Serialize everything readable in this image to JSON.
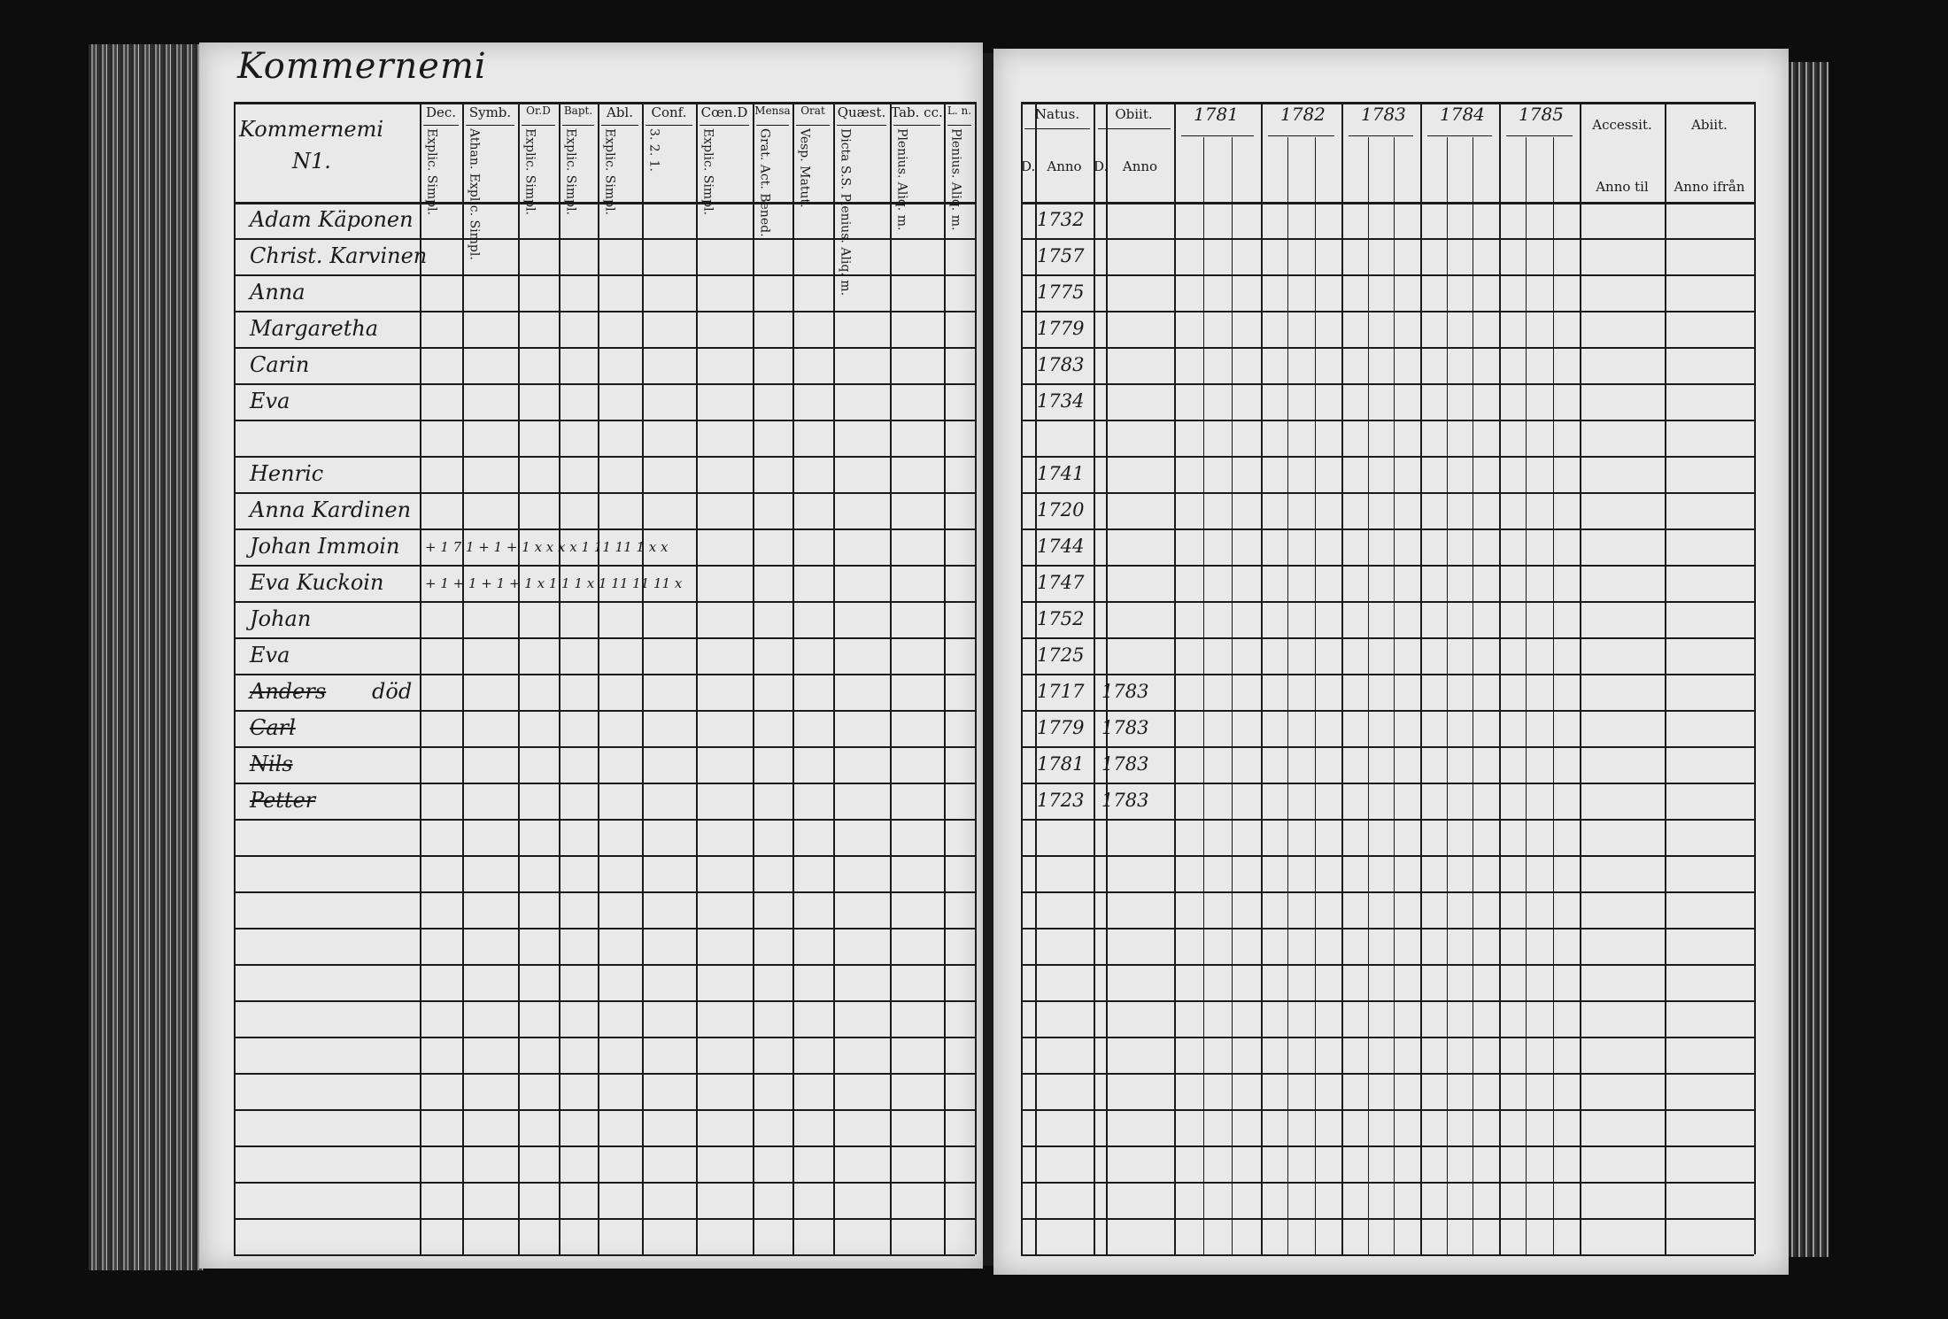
{
  "left_page": {
    "title": "Kommernemi",
    "first_header": {
      "line1": "Kommernemi",
      "line2": "N1."
    },
    "columns": [
      {
        "label": "Dec.",
        "sub": "Explic. Simpl."
      },
      {
        "label": "Symb.",
        "sub": "Athan. Explic. Simpl."
      },
      {
        "label": "Or.D",
        "sub": "Explic. Simpl."
      },
      {
        "label": "Bapt.",
        "sub": "Explic. Simpl."
      },
      {
        "label": "Abl.",
        "sub": "Explic. Simpl."
      },
      {
        "label": "Conf.",
        "sub": "3. 2. 1."
      },
      {
        "label": "Cœn.D",
        "sub": "Explic. Simpl."
      },
      {
        "label": "Mensa",
        "sub": "Grat. Act. Bened."
      },
      {
        "label": "Orat",
        "sub": "Vesp. Matut."
      },
      {
        "label": "Quæst.",
        "sub": "Dicta S.S. Plenius. Aliq. m."
      },
      {
        "label": "Tab. cc.",
        "sub": "Plenius. Aliq. m."
      },
      {
        "label": "L. n.",
        "sub": "Plenius. Aliq. m."
      }
    ],
    "rows": [
      {
        "name": "Adam Käponen",
        "struck": false,
        "note": "",
        "marks": ""
      },
      {
        "name": "Christ. Karvinen",
        "struck": false,
        "note": "",
        "marks": ""
      },
      {
        "name": "Anna",
        "struck": false,
        "note": "",
        "marks": ""
      },
      {
        "name": "Margaretha",
        "struck": false,
        "note": "",
        "marks": ""
      },
      {
        "name": "Carin",
        "struck": false,
        "note": "",
        "marks": ""
      },
      {
        "name": "Eva",
        "struck": false,
        "note": "",
        "marks": ""
      },
      {
        "name": "",
        "struck": false,
        "note": "",
        "marks": ""
      },
      {
        "name": "Henric",
        "struck": false,
        "note": "",
        "marks": ""
      },
      {
        "name": "Anna Kardinen",
        "struck": false,
        "note": "",
        "marks": ""
      },
      {
        "name": "Johan Immoin",
        "struck": false,
        "note": "",
        "marks": "+ 1  7 1   + 1  + 1  x x x  x 1   11  11  1 x             x"
      },
      {
        "name": "Eva Kuckoin",
        "struck": false,
        "note": "",
        "marks": "+ 1  + 1   + 1  + 1  x 1  1 1  x 1   11  11  11             x"
      },
      {
        "name": "Johan",
        "struck": false,
        "note": "",
        "marks": ""
      },
      {
        "name": "Eva",
        "struck": false,
        "note": "",
        "marks": ""
      },
      {
        "name": "Anders",
        "struck": true,
        "note": "död",
        "marks": ""
      },
      {
        "name": "Carl",
        "struck": true,
        "note": "",
        "marks": ""
      },
      {
        "name": "Nils",
        "struck": true,
        "note": "",
        "marks": ""
      },
      {
        "name": "Petter",
        "struck": true,
        "note": "",
        "marks": ""
      }
    ]
  },
  "right_page": {
    "natus": {
      "label": "Natus.",
      "d": "D.",
      "anno": "Anno"
    },
    "obiit": {
      "label": "Obiit.",
      "d": "D.",
      "anno": "Anno"
    },
    "years": [
      "1781",
      "1782",
      "1783",
      "1784",
      "1785"
    ],
    "accessit": {
      "label": "Accessit.",
      "sub": "Anno til"
    },
    "abiit": {
      "label": "Abiit.",
      "sub": "Anno ifrån"
    },
    "rows": [
      {
        "born": "1732",
        "died": ""
      },
      {
        "born": "1757",
        "died": ""
      },
      {
        "born": "1775",
        "died": ""
      },
      {
        "born": "1779",
        "died": ""
      },
      {
        "born": "1783",
        "died": ""
      },
      {
        "born": "1734",
        "died": ""
      },
      {
        "born": "",
        "died": ""
      },
      {
        "born": "1741",
        "died": ""
      },
      {
        "born": "1720",
        "died": ""
      },
      {
        "born": "1744",
        "died": ""
      },
      {
        "born": "1747",
        "died": ""
      },
      {
        "born": "1752",
        "died": ""
      },
      {
        "born": "1725",
        "died": ""
      },
      {
        "born": "1717",
        "died": "1783"
      },
      {
        "born": "1779",
        "died": "1783"
      },
      {
        "born": "1781",
        "died": "1783"
      },
      {
        "born": "1723",
        "died": "1783"
      }
    ]
  }
}
